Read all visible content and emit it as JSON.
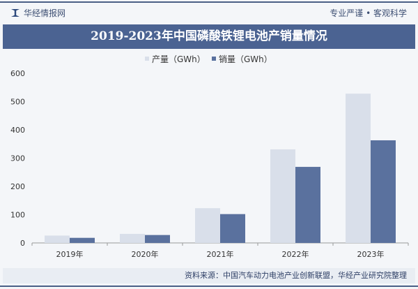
{
  "header": {
    "brand": "华经情报网",
    "slogan": "专业严谨 • 客观科学"
  },
  "source": "资料来源：中国汽车动力电池产业创新联盟，华经产业研究院整理",
  "watermark": "华经产业研究院",
  "chart_data": {
    "type": "bar",
    "title": "2019-2023年中国磷酸铁锂电池产销量情况",
    "categories": [
      "2019年",
      "2020年",
      "2021年",
      "2022年",
      "2023年"
    ],
    "series": [
      {
        "name": "产量（GWh）",
        "color": "#d9dfea",
        "values": [
          26,
          32,
          123,
          331,
          528
        ]
      },
      {
        "name": "销量（GWh）",
        "color": "#5a719e",
        "values": [
          18,
          28,
          102,
          269,
          363
        ]
      }
    ],
    "yticks": [
      0,
      100,
      200,
      300,
      400,
      500,
      600
    ],
    "ylim": [
      0,
      600
    ],
    "legend": "top-center",
    "grid": false
  }
}
